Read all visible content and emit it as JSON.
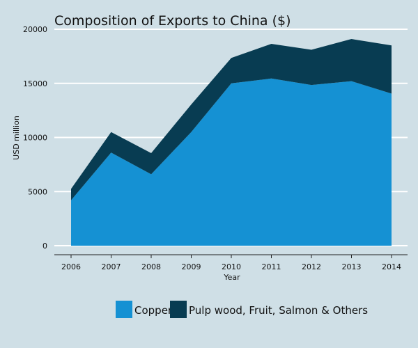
{
  "chart_data": {
    "type": "area",
    "stacked": true,
    "title": "Composition of Exports to China ($)",
    "xlabel": "Year",
    "ylabel": "USD million",
    "x": [
      "2006",
      "2007",
      "2008",
      "2009",
      "2010",
      "2011",
      "2012",
      "2013",
      "2014"
    ],
    "ylim": [
      0,
      20000
    ],
    "yticks": [
      "0",
      "5000",
      "10000",
      "15000",
      "20000"
    ],
    "grid": "horizontal",
    "legend_position": "bottom",
    "series": [
      {
        "name": "Copper",
        "color": "#1591d3",
        "values": [
          4200,
          8600,
          6600,
          10500,
          15000,
          15450,
          14850,
          15200,
          14050
        ]
      },
      {
        "name": "Pulp wood, Fruit, Salmon & Others",
        "color": "#083c52",
        "values": [
          1050,
          1900,
          1950,
          2550,
          2350,
          3200,
          3250,
          3900,
          4450
        ]
      }
    ]
  }
}
